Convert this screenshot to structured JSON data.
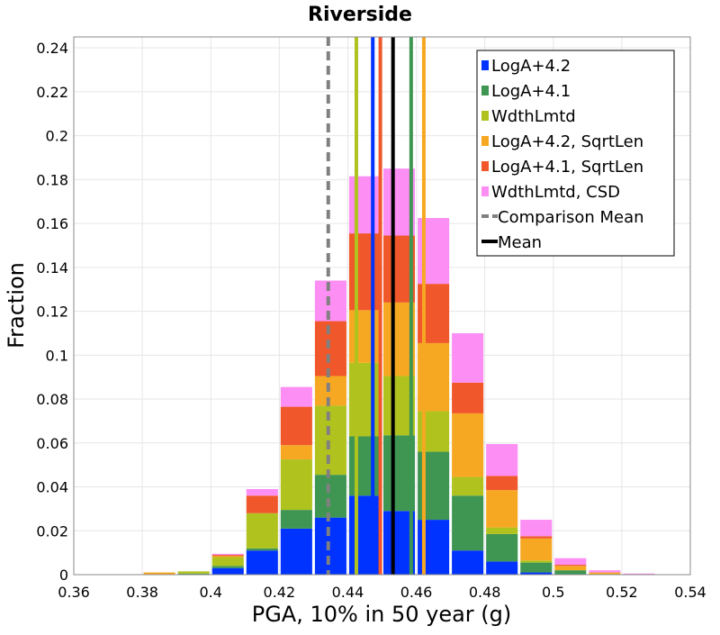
{
  "chart_data": {
    "type": "bar",
    "stacked": true,
    "title": "Riverside",
    "xlabel": "PGA, 10% in 50 year (g)",
    "ylabel": "Fraction",
    "xlim": [
      0.36,
      0.54
    ],
    "ylim": [
      0,
      0.245
    ],
    "x_ticks": [
      "0.36",
      "0.38",
      "0.4",
      "0.42",
      "0.44",
      "0.46",
      "0.48",
      "0.5",
      "0.52",
      "0.54"
    ],
    "y_ticks": [
      "0",
      "0.02",
      "0.04",
      "0.06",
      "0.08",
      "0.1",
      "0.12",
      "0.14",
      "0.16",
      "0.18",
      "0.2",
      "0.22",
      "0.24"
    ],
    "grid": true,
    "legend_position": "top-right",
    "bin_width": 0.01,
    "bin_starts": [
      0.36,
      0.37,
      0.38,
      0.39,
      0.4,
      0.41,
      0.42,
      0.43,
      0.44,
      0.45,
      0.46,
      0.47,
      0.48,
      0.49,
      0.5,
      0.51,
      0.52,
      0.53
    ],
    "series": [
      {
        "name": "LogA+4.2",
        "color": "#0033ff",
        "values": [
          0,
          0,
          0,
          0,
          0.003,
          0.011,
          0.021,
          0.026,
          0.036,
          0.029,
          0.025,
          0.011,
          0.006,
          0.001,
          0,
          0,
          0,
          0
        ]
      },
      {
        "name": "LogA+4.1",
        "color": "#3f9652",
        "values": [
          0,
          0,
          0,
          0.0005,
          0.001,
          0.001,
          0.0085,
          0.0195,
          0.027,
          0.0345,
          0.031,
          0.025,
          0.0125,
          0.0045,
          0.002,
          0,
          0,
          0
        ]
      },
      {
        "name": "WdthLmtd",
        "color": "#b0c21e",
        "values": [
          0,
          0,
          0,
          0.001,
          0.004,
          0.016,
          0.023,
          0.0315,
          0.0335,
          0.027,
          0.0185,
          0.0085,
          0.003,
          0.001,
          0,
          0,
          0,
          0
        ]
      },
      {
        "name": "LogA+4.2, SqrtLen",
        "color": "#f7a823",
        "values": [
          0,
          0,
          0.001,
          0,
          0.0005,
          0,
          0.0065,
          0.0135,
          0.024,
          0.0335,
          0.031,
          0.029,
          0.017,
          0.01,
          0.002,
          0.001,
          0,
          0
        ]
      },
      {
        "name": "LogA+4.1, SqrtLen",
        "color": "#f0572a",
        "values": [
          0,
          0,
          0,
          0,
          0.0005,
          0.008,
          0.0175,
          0.025,
          0.035,
          0.0305,
          0.027,
          0.014,
          0.0065,
          0.001,
          0.0005,
          0,
          0,
          0
        ]
      },
      {
        "name": "WdthLmtd, CSD",
        "color": "#fc8ef4",
        "values": [
          0,
          0,
          0,
          0,
          0.0005,
          0.003,
          0.009,
          0.0185,
          0.026,
          0.0305,
          0.03,
          0.0225,
          0.0145,
          0.0075,
          0.003,
          0.001,
          0.0005,
          0
        ]
      }
    ],
    "vertical_lines": [
      {
        "name": "LogA+4.2",
        "x": 0.4473,
        "color": "#0033ff",
        "style": "solid"
      },
      {
        "name": "LogA+4.1",
        "x": 0.4585,
        "color": "#3f9652",
        "style": "solid"
      },
      {
        "name": "WdthLmtd",
        "x": 0.4425,
        "color": "#b0c21e",
        "style": "solid"
      },
      {
        "name": "LogA+4.2, SqrtLen",
        "x": 0.4622,
        "color": "#f7a823",
        "style": "solid"
      },
      {
        "name": "LogA+4.1, SqrtLen",
        "x": 0.4495,
        "color": "#f0572a",
        "style": "solid"
      },
      {
        "name": "Comparison Mean",
        "x": 0.4343,
        "color": "#808080",
        "style": "dashed"
      },
      {
        "name": "Mean",
        "x": 0.4532,
        "color": "#000000",
        "style": "solid"
      }
    ],
    "legend": [
      {
        "label": "LogA+4.2",
        "color": "#0033ff",
        "kind": "box"
      },
      {
        "label": "LogA+4.1",
        "color": "#3f9652",
        "kind": "box"
      },
      {
        "label": "WdthLmtd",
        "color": "#b0c21e",
        "kind": "box"
      },
      {
        "label": "LogA+4.2, SqrtLen",
        "color": "#f7a823",
        "kind": "box"
      },
      {
        "label": "LogA+4.1, SqrtLen",
        "color": "#f0572a",
        "kind": "box"
      },
      {
        "label": "WdthLmtd, CSD",
        "color": "#fc8ef4",
        "kind": "box"
      },
      {
        "label": "Comparison Mean",
        "color": "#808080",
        "kind": "dashed"
      },
      {
        "label": "Mean",
        "color": "#000000",
        "kind": "line"
      }
    ]
  }
}
